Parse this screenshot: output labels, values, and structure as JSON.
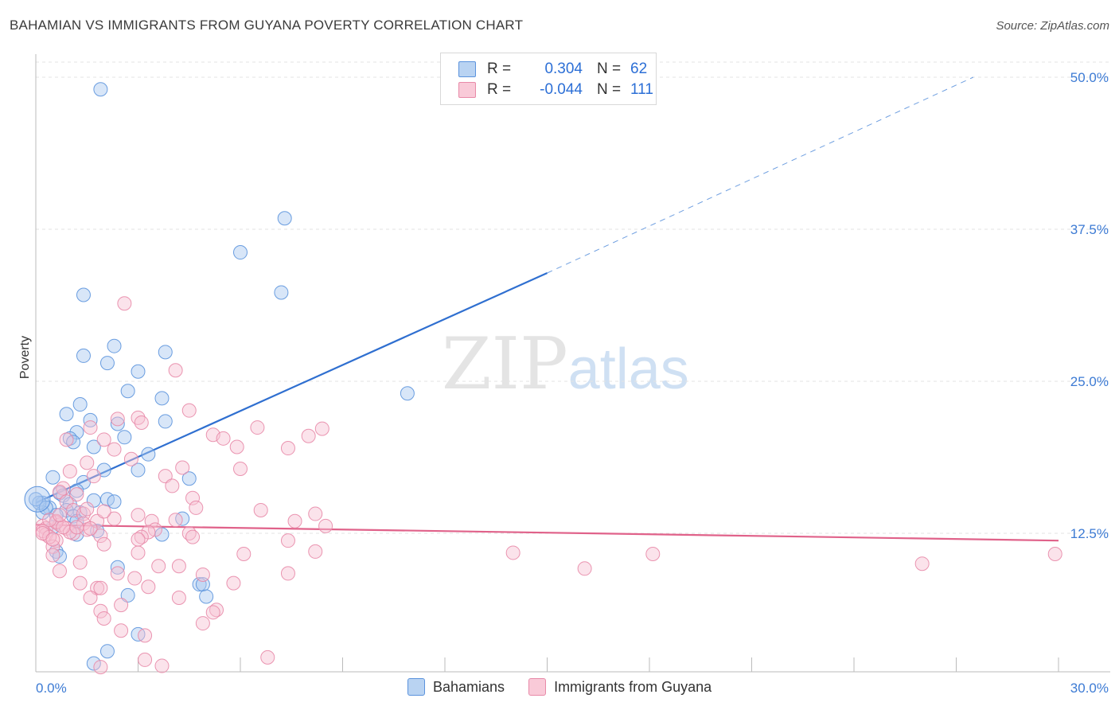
{
  "title": "BAHAMIAN VS IMMIGRANTS FROM GUYANA POVERTY CORRELATION CHART",
  "source": "Source: ZipAtlas.com",
  "watermark": {
    "zip": "ZIP",
    "atlas": "atlas"
  },
  "legend": {
    "rows": [
      {
        "r_label": "R =",
        "r_value": "0.304",
        "n_label": "N =",
        "n_value": "62",
        "color": "#8fb8ec",
        "border": "#5b93dd"
      },
      {
        "r_label": "R =",
        "r_value": "-0.044",
        "n_label": "N =",
        "n_value": "111",
        "color": "#f5b8cb",
        "border": "#e88aa8"
      }
    ]
  },
  "bottom_legend": [
    "Bahamians",
    "Immigrants from Guyana"
  ],
  "chart_data": {
    "type": "scatter",
    "title": "BAHAMIAN VS IMMIGRANTS FROM GUYANA POVERTY CORRELATION CHART",
    "xlabel": "",
    "ylabel": "Poverty",
    "xlim": [
      0,
      30
    ],
    "ylim": [
      0,
      50
    ],
    "x_ticks": [
      "0.0%",
      "30.0%"
    ],
    "y_ticks": [
      {
        "value": 12.5,
        "label": "12.5%"
      },
      {
        "value": 25.0,
        "label": "25.0%"
      },
      {
        "value": 37.5,
        "label": "37.5%"
      },
      {
        "value": 50.0,
        "label": "50.0%"
      }
    ],
    "series": [
      {
        "name": "Bahamians",
        "color": "#5b93dd",
        "fill": "#a9c8ef",
        "trend": {
          "x0": 0,
          "y0": 15.0,
          "x1": 15.0,
          "y1": 33.9,
          "dash_x1": 27.5,
          "dash_y1": 50
        },
        "points": [
          [
            1.9,
            49.0
          ],
          [
            7.3,
            38.4
          ],
          [
            6.0,
            35.6
          ],
          [
            7.2,
            32.3
          ],
          [
            1.4,
            32.1
          ],
          [
            2.3,
            27.9
          ],
          [
            1.4,
            27.1
          ],
          [
            2.1,
            26.5
          ],
          [
            3.0,
            25.8
          ],
          [
            3.8,
            27.4
          ],
          [
            2.7,
            24.2
          ],
          [
            3.7,
            23.6
          ],
          [
            1.3,
            23.1
          ],
          [
            10.9,
            24.0
          ],
          [
            0.9,
            22.3
          ],
          [
            1.6,
            21.8
          ],
          [
            2.4,
            21.5
          ],
          [
            3.8,
            21.7
          ],
          [
            1.2,
            20.8
          ],
          [
            1.0,
            20.3
          ],
          [
            1.1,
            20.0
          ],
          [
            2.6,
            20.4
          ],
          [
            1.7,
            19.6
          ],
          [
            3.3,
            19.0
          ],
          [
            2.0,
            17.7
          ],
          [
            3.0,
            17.7
          ],
          [
            4.5,
            17.0
          ],
          [
            0.5,
            17.1
          ],
          [
            1.4,
            16.7
          ],
          [
            1.2,
            16.0
          ],
          [
            0.7,
            15.8
          ],
          [
            0.8,
            15.6
          ],
          [
            1.7,
            15.2
          ],
          [
            2.1,
            15.3
          ],
          [
            2.3,
            15.1
          ],
          [
            1.0,
            14.9
          ],
          [
            0.2,
            15.0
          ],
          [
            0.4,
            14.6
          ],
          [
            0.9,
            14.4
          ],
          [
            1.3,
            14.2
          ],
          [
            0.6,
            14.0
          ],
          [
            0.2,
            14.2
          ],
          [
            1.1,
            13.9
          ],
          [
            4.3,
            13.7
          ],
          [
            1.2,
            13.5
          ],
          [
            0.5,
            13.0
          ],
          [
            1.8,
            12.7
          ],
          [
            1.2,
            12.4
          ],
          [
            3.7,
            12.4
          ],
          [
            0.6,
            11.0
          ],
          [
            0.7,
            10.6
          ],
          [
            2.4,
            9.7
          ],
          [
            4.8,
            8.3
          ],
          [
            4.9,
            8.3
          ],
          [
            2.7,
            7.4
          ],
          [
            5.0,
            7.3
          ],
          [
            3.0,
            4.2
          ],
          [
            2.1,
            2.8
          ],
          [
            1.7,
            1.8
          ],
          [
            0.1,
            15.0
          ],
          [
            0.3,
            14.6
          ],
          [
            0.0,
            15.3
          ]
        ]
      },
      {
        "name": "Immigrants from Guyana",
        "color": "#e88aa8",
        "fill": "#f7c2d2",
        "trend": {
          "x0": 0,
          "y0": 13.2,
          "x1": 30.0,
          "y1": 11.9
        },
        "points": [
          [
            2.6,
            31.4
          ],
          [
            4.1,
            25.9
          ],
          [
            4.5,
            22.6
          ],
          [
            2.4,
            21.9
          ],
          [
            3.0,
            22.0
          ],
          [
            3.1,
            21.6
          ],
          [
            1.6,
            21.2
          ],
          [
            6.5,
            21.2
          ],
          [
            8.4,
            21.1
          ],
          [
            5.2,
            20.6
          ],
          [
            8.0,
            20.5
          ],
          [
            5.5,
            20.3
          ],
          [
            0.9,
            20.2
          ],
          [
            2.0,
            20.2
          ],
          [
            5.9,
            19.6
          ],
          [
            7.4,
            19.5
          ],
          [
            2.3,
            19.4
          ],
          [
            2.8,
            18.6
          ],
          [
            1.5,
            18.3
          ],
          [
            6.0,
            17.8
          ],
          [
            4.3,
            17.9
          ],
          [
            1.0,
            17.6
          ],
          [
            1.7,
            17.2
          ],
          [
            3.8,
            17.2
          ],
          [
            4.0,
            16.4
          ],
          [
            0.8,
            16.2
          ],
          [
            0.7,
            15.9
          ],
          [
            1.2,
            15.7
          ],
          [
            4.6,
            15.4
          ],
          [
            0.9,
            15.1
          ],
          [
            4.7,
            14.6
          ],
          [
            1.1,
            14.4
          ],
          [
            6.6,
            14.4
          ],
          [
            8.2,
            14.1
          ],
          [
            1.4,
            14.1
          ],
          [
            2.3,
            13.7
          ],
          [
            4.1,
            13.6
          ],
          [
            1.8,
            13.5
          ],
          [
            0.6,
            13.5
          ],
          [
            3.4,
            13.5
          ],
          [
            7.6,
            13.5
          ],
          [
            1.4,
            13.3
          ],
          [
            8.5,
            13.1
          ],
          [
            0.7,
            13.2
          ],
          [
            0.2,
            13.1
          ],
          [
            0.3,
            12.9
          ],
          [
            0.9,
            12.9
          ],
          [
            1.5,
            12.8
          ],
          [
            3.5,
            12.8
          ],
          [
            3.3,
            12.6
          ],
          [
            4.5,
            12.5
          ],
          [
            1.1,
            12.5
          ],
          [
            0.3,
            12.4
          ],
          [
            1.9,
            12.3
          ],
          [
            3.1,
            12.2
          ],
          [
            4.6,
            12.2
          ],
          [
            3.0,
            12.0
          ],
          [
            0.6,
            11.9
          ],
          [
            7.4,
            11.9
          ],
          [
            2.0,
            11.6
          ],
          [
            0.5,
            11.4
          ],
          [
            8.2,
            11.0
          ],
          [
            3.0,
            10.9
          ],
          [
            6.1,
            10.8
          ],
          [
            14.0,
            10.9
          ],
          [
            18.1,
            10.8
          ],
          [
            26.0,
            10.0
          ],
          [
            29.9,
            10.8
          ],
          [
            16.1,
            9.6
          ],
          [
            3.6,
            9.8
          ],
          [
            4.2,
            9.8
          ],
          [
            0.5,
            10.7
          ],
          [
            1.3,
            10.1
          ],
          [
            0.7,
            9.4
          ],
          [
            2.4,
            9.2
          ],
          [
            2.9,
            8.8
          ],
          [
            4.9,
            9.1
          ],
          [
            7.4,
            9.2
          ],
          [
            1.3,
            8.4
          ],
          [
            5.8,
            8.4
          ],
          [
            3.3,
            8.1
          ],
          [
            1.8,
            8.0
          ],
          [
            1.9,
            8.0
          ],
          [
            1.6,
            7.2
          ],
          [
            4.2,
            7.2
          ],
          [
            2.5,
            6.6
          ],
          [
            1.9,
            6.1
          ],
          [
            5.3,
            6.2
          ],
          [
            5.2,
            6.0
          ],
          [
            2.0,
            5.5
          ],
          [
            4.9,
            5.1
          ],
          [
            2.5,
            4.5
          ],
          [
            3.2,
            4.1
          ],
          [
            6.8,
            2.3
          ],
          [
            3.2,
            2.1
          ],
          [
            3.7,
            1.6
          ],
          [
            1.9,
            1.5
          ],
          [
            0.2,
            12.7
          ],
          [
            0.4,
            12.2
          ],
          [
            1.0,
            12.6
          ],
          [
            0.6,
            13.4
          ],
          [
            0.8,
            13.0
          ],
          [
            1.6,
            12.9
          ],
          [
            0.4,
            13.6
          ],
          [
            0.2,
            12.5
          ],
          [
            0.7,
            14.0
          ],
          [
            3.0,
            14.0
          ],
          [
            1.5,
            14.5
          ],
          [
            2.0,
            14.3
          ],
          [
            0.5,
            12.0
          ],
          [
            1.2,
            13.0
          ]
        ]
      }
    ]
  }
}
